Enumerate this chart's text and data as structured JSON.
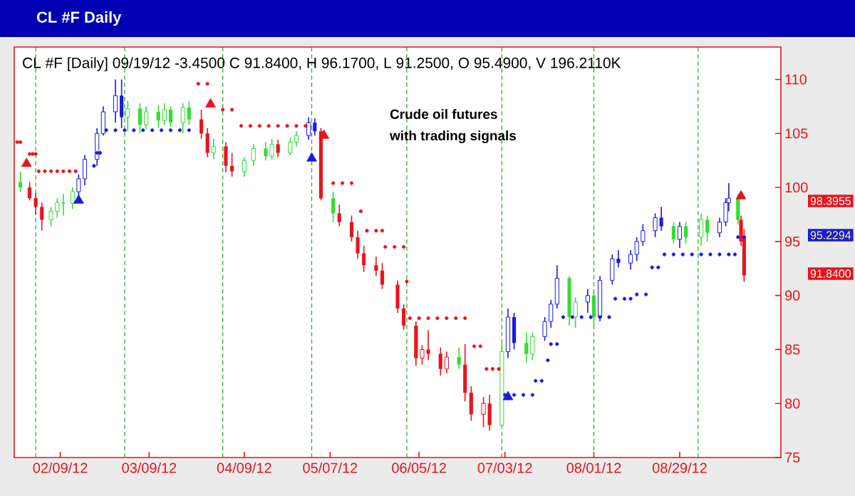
{
  "chart_data": {
    "type": "candlestick",
    "title": "CL #F Daily",
    "subtitle": "CL #F [Daily] 09/19/12 -3.4500 C 91.8400, H 96.1700, L 91.2500, O 95.4900, V 196.2110K",
    "annotations": [
      "Crude oil futures",
      "with trading signals",
      "98.3955",
      "95.2294",
      "91.8400"
    ],
    "xlim": [
      "2012-01-25",
      "2012-10-01"
    ],
    "xticks": [
      {
        "value": "2012-02-09",
        "label": "02/09/12"
      },
      {
        "value": "2012-03-09",
        "label": "03/09/12"
      },
      {
        "value": "2012-04-09",
        "label": "04/09/12"
      },
      {
        "value": "2012-05-07",
        "label": "05/07/12"
      },
      {
        "value": "2012-06-05",
        "label": "06/05/12"
      },
      {
        "value": "2012-07-03",
        "label": "07/03/12"
      },
      {
        "value": "2012-08-01",
        "label": "08/01/12"
      },
      {
        "value": "2012-08-29",
        "label": "08/29/12"
      }
    ],
    "ylim": [
      75,
      113
    ],
    "yticks": [
      75,
      80,
      85,
      90,
      95,
      100,
      105,
      110
    ],
    "ref_lines": [
      {
        "axis": "x",
        "value": "2012-02-01",
        "color": "#22aa22",
        "line_style": "dashed"
      },
      {
        "axis": "x",
        "value": "2012-03-01",
        "color": "#22aa22",
        "line_style": "dashed"
      },
      {
        "axis": "x",
        "value": "2012-04-02",
        "color": "#22aa22",
        "line_style": "dashed"
      },
      {
        "axis": "x",
        "value": "2012-05-01",
        "color": "#22aa22",
        "line_style": "dashed"
      },
      {
        "axis": "x",
        "value": "2012-06-01",
        "color": "#22aa22",
        "line_style": "dashed"
      },
      {
        "axis": "x",
        "value": "2012-07-02",
        "color": "#22aa22",
        "line_style": "dashed"
      },
      {
        "axis": "x",
        "value": "2012-08-01",
        "color": "#22aa22",
        "line_style": "dashed"
      },
      {
        "axis": "x",
        "value": "2012-09-04",
        "color": "#22aa22",
        "line_style": "dashed"
      }
    ],
    "series": [
      {
        "x": [
          "2012-01-27",
          "2012-01-30",
          "2012-02-01",
          "2012-02-03",
          "2012-02-06",
          "2012-02-08",
          "2012-02-10",
          "2012-02-13",
          "2012-02-15",
          "2012-02-17",
          "2012-02-21",
          "2012-02-23",
          "2012-02-27",
          "2012-02-29",
          "2012-03-02",
          "2012-03-06",
          "2012-03-08",
          "2012-03-12",
          "2012-03-14",
          "2012-03-16",
          "2012-03-20",
          "2012-03-22",
          "2012-03-26",
          "2012-03-28",
          "2012-03-30",
          "2012-04-03",
          "2012-04-05",
          "2012-04-09",
          "2012-04-12",
          "2012-04-16",
          "2012-04-18",
          "2012-04-20",
          "2012-04-24",
          "2012-04-26",
          "2012-04-30",
          "2012-05-02",
          "2012-05-04",
          "2012-05-08",
          "2012-05-10",
          "2012-05-14",
          "2012-05-16",
          "2012-05-18",
          "2012-05-22",
          "2012-05-24",
          "2012-05-29",
          "2012-05-31",
          "2012-06-04",
          "2012-06-06",
          "2012-06-08",
          "2012-06-12",
          "2012-06-14",
          "2012-06-18",
          "2012-06-20",
          "2012-06-22",
          "2012-06-26",
          "2012-06-28",
          "2012-07-02",
          "2012-07-04",
          "2012-07-06",
          "2012-07-10",
          "2012-07-12",
          "2012-07-16",
          "2012-07-18",
          "2012-07-20",
          "2012-07-24",
          "2012-07-26",
          "2012-07-30",
          "2012-08-01",
          "2012-08-03",
          "2012-08-07",
          "2012-08-09",
          "2012-08-13",
          "2012-08-15",
          "2012-08-17",
          "2012-08-21",
          "2012-08-23",
          "2012-08-27",
          "2012-08-29",
          "2012-08-31",
          "2012-09-05",
          "2012-09-07",
          "2012-09-11",
          "2012-09-13",
          "2012-09-14",
          "2012-09-17",
          "2012-09-18",
          "2012-09-19"
        ],
        "ohlc": [
          [
            100.5,
            101.5,
            99.6,
            100.0
          ],
          [
            100.0,
            100.5,
            98.8,
            99.0
          ],
          [
            99.0,
            99.5,
            97.5,
            98.2
          ],
          [
            98.2,
            98.6,
            96.0,
            97.0
          ],
          [
            97.0,
            98.2,
            96.4,
            97.8
          ],
          [
            97.8,
            99.0,
            97.2,
            98.6
          ],
          [
            98.6,
            99.4,
            97.4,
            98.5
          ],
          [
            98.5,
            100.0,
            98.0,
            99.6
          ],
          [
            99.6,
            101.2,
            99.0,
            100.8
          ],
          [
            100.8,
            103.0,
            100.2,
            102.6
          ],
          [
            102.6,
            105.5,
            102.0,
            105.0
          ],
          [
            105.0,
            107.5,
            104.8,
            107.0
          ],
          [
            107.0,
            110.0,
            106.0,
            108.5
          ],
          [
            108.5,
            110.0,
            105.5,
            106.5
          ],
          [
            106.5,
            108.0,
            105.2,
            107.3
          ],
          [
            107.3,
            107.8,
            105.0,
            105.8
          ],
          [
            105.8,
            107.5,
            105.4,
            107.0
          ],
          [
            107.0,
            107.6,
            105.5,
            106.2
          ],
          [
            106.2,
            107.8,
            105.8,
            107.2
          ],
          [
            107.2,
            107.5,
            105.6,
            106.0
          ],
          [
            106.0,
            107.8,
            105.0,
            107.4
          ],
          [
            107.4,
            108.0,
            105.8,
            106.3
          ],
          [
            106.3,
            107.2,
            104.5,
            105.0
          ],
          [
            105.0,
            105.5,
            102.8,
            103.2
          ],
          [
            103.2,
            104.5,
            102.6,
            103.8
          ],
          [
            103.8,
            104.2,
            101.4,
            102.0
          ],
          [
            102.0,
            103.2,
            101.0,
            101.5
          ],
          [
            101.5,
            102.8,
            101.0,
            102.5
          ],
          [
            102.5,
            104.0,
            102.0,
            103.6
          ],
          [
            103.6,
            104.2,
            102.5,
            102.9
          ],
          [
            102.9,
            104.5,
            102.6,
            104.0
          ],
          [
            104.0,
            104.4,
            102.8,
            103.2
          ],
          [
            103.2,
            104.6,
            103.0,
            104.2
          ],
          [
            104.2,
            105.2,
            103.8,
            104.8
          ],
          [
            104.8,
            106.5,
            104.4,
            106.0
          ],
          [
            106.0,
            106.4,
            104.8,
            105.2
          ],
          [
            105.2,
            105.5,
            98.8,
            99.0
          ],
          [
            99.0,
            99.6,
            96.8,
            97.6
          ],
          [
            97.6,
            98.4,
            96.4,
            96.8
          ],
          [
            96.8,
            97.4,
            95.0,
            95.4
          ],
          [
            95.4,
            96.0,
            93.4,
            93.9
          ],
          [
            93.9,
            94.6,
            92.2,
            92.8
          ],
          [
            92.8,
            93.6,
            91.8,
            92.3
          ],
          [
            92.3,
            93.0,
            90.6,
            91.0
          ],
          [
            91.0,
            91.4,
            88.4,
            88.8
          ],
          [
            88.8,
            89.2,
            86.8,
            87.2
          ],
          [
            87.2,
            87.6,
            83.5,
            84.2
          ],
          [
            84.2,
            85.4,
            83.6,
            85.0
          ],
          [
            85.0,
            86.8,
            84.0,
            84.6
          ],
          [
            84.6,
            85.2,
            82.6,
            83.2
          ],
          [
            83.2,
            84.8,
            82.8,
            84.3
          ],
          [
            84.3,
            85.2,
            83.2,
            83.6
          ],
          [
            83.6,
            85.5,
            80.2,
            81.0
          ],
          [
            81.0,
            81.6,
            78.4,
            79.0
          ],
          [
            79.0,
            80.6,
            77.8,
            80.0
          ],
          [
            80.0,
            80.8,
            77.5,
            78.0
          ],
          [
            78.0,
            85.6,
            77.9,
            84.8
          ],
          [
            84.8,
            88.8,
            84.2,
            88.0
          ],
          [
            88.0,
            88.4,
            85.0,
            85.6
          ],
          [
            85.6,
            86.6,
            83.8,
            84.6
          ],
          [
            84.6,
            86.6,
            84.0,
            86.2
          ],
          [
            86.2,
            88.0,
            85.8,
            87.6
          ],
          [
            87.6,
            89.6,
            87.0,
            89.2
          ],
          [
            89.2,
            92.8,
            88.8,
            91.6
          ],
          [
            91.6,
            91.8,
            87.2,
            88.0
          ],
          [
            88.0,
            89.8,
            87.0,
            89.4
          ],
          [
            89.4,
            90.6,
            88.4,
            90.0
          ],
          [
            90.0,
            90.4,
            87.2,
            88.0
          ],
          [
            88.0,
            91.8,
            87.6,
            91.4
          ],
          [
            91.4,
            93.8,
            91.0,
            93.4
          ],
          [
            93.4,
            94.2,
            92.6,
            93.0
          ],
          [
            93.0,
            94.2,
            92.4,
            93.8
          ],
          [
            93.8,
            95.4,
            93.2,
            95.0
          ],
          [
            95.0,
            96.6,
            94.6,
            96.0
          ],
          [
            96.0,
            97.6,
            95.4,
            97.2
          ],
          [
            97.2,
            98.2,
            96.0,
            96.4
          ],
          [
            96.4,
            96.8,
            94.8,
            95.2
          ],
          [
            95.2,
            96.8,
            94.4,
            96.4
          ],
          [
            96.4,
            96.8,
            94.8,
            95.4
          ],
          [
            95.4,
            97.6,
            94.6,
            97.0
          ],
          [
            97.0,
            97.4,
            95.0,
            95.8
          ],
          [
            95.8,
            97.2,
            95.4,
            96.8
          ],
          [
            96.8,
            99.0,
            96.4,
            98.6
          ],
          [
            98.6,
            100.4,
            97.8,
            99.0
          ],
          [
            99.0,
            99.4,
            96.6,
            97.0
          ],
          [
            97.0,
            97.4,
            94.6,
            95.0
          ],
          [
            95.49,
            96.17,
            91.25,
            91.84
          ]
        ],
        "colors": [
          "#33dd33",
          "#e8141c",
          "#e8141c",
          "#e8141c",
          "#33dd33",
          "#33dd33",
          "#33dd33",
          "#33dd33",
          "#1a1adf",
          "#1a1adf",
          "#1a1adf",
          "#1a1adf",
          "#1a1adf",
          "#1a1adf",
          "#33dd33",
          "#33dd33",
          "#33dd33",
          "#33dd33",
          "#33dd33",
          "#33dd33",
          "#33dd33",
          "#33dd33",
          "#e8141c",
          "#e8141c",
          "#33dd33",
          "#e8141c",
          "#e8141c",
          "#33dd33",
          "#33dd33",
          "#33dd33",
          "#33dd33",
          "#e8141c",
          "#33dd33",
          "#33dd33",
          "#1a1adf",
          "#1a1adf",
          "#e8141c",
          "#33dd33",
          "#e8141c",
          "#e8141c",
          "#e8141c",
          "#e8141c",
          "#e8141c",
          "#e8141c",
          "#e8141c",
          "#e8141c",
          "#e8141c",
          "#e8141c",
          "#e8141c",
          "#e8141c",
          "#e8141c",
          "#33dd33",
          "#e8141c",
          "#e8141c",
          "#e8141c",
          "#e8141c",
          "#33dd33",
          "#1a1adf",
          "#1a1adf",
          "#33dd33",
          "#33dd33",
          "#1a1adf",
          "#1a1adf",
          "#1a1adf",
          "#33dd33",
          "#33dd33",
          "#1a1adf",
          "#33dd33",
          "#1a1adf",
          "#1a1adf",
          "#1a1adf",
          "#1a1adf",
          "#1a1adf",
          "#1a1adf",
          "#1a1adf",
          "#1a1adf",
          "#33dd33",
          "#1a1adf",
          "#33dd33",
          "#33dd33",
          "#33dd33",
          "#1a1adf",
          "#1a1adf",
          "#1a1adf",
          "#33dd33",
          "#e8141c",
          "#e8141c"
        ]
      },
      {
        "type": "scatter",
        "marker": "circle",
        "color": "#e8141c",
        "x": [
          "2012-01-26",
          "2012-01-27",
          "2012-01-30",
          "2012-01-31",
          "2012-02-01",
          "2012-02-02",
          "2012-02-04",
          "2012-02-06",
          "2012-02-08",
          "2012-02-10",
          "2012-02-12",
          "2012-02-14",
          "2012-03-25",
          "2012-03-28",
          "2012-04-02",
          "2012-04-05",
          "2012-04-08",
          "2012-04-11",
          "2012-04-14",
          "2012-04-17",
          "2012-04-20",
          "2012-04-23",
          "2012-04-26",
          "2012-04-29",
          "2012-05-08",
          "2012-05-11",
          "2012-05-14",
          "2012-05-17",
          "2012-05-19",
          "2012-05-22",
          "2012-05-24",
          "2012-05-25",
          "2012-05-28",
          "2012-05-31",
          "2012-06-01",
          "2012-06-02",
          "2012-06-05",
          "2012-06-08",
          "2012-06-11",
          "2012-06-14",
          "2012-06-17",
          "2012-06-20",
          "2012-06-23",
          "2012-06-25",
          "2012-06-27",
          "2012-06-29",
          "2012-07-01"
        ],
        "values": [
          104.2,
          104.2,
          103.1,
          103.1,
          103.1,
          101.5,
          101.5,
          101.5,
          101.5,
          101.5,
          101.5,
          101.5,
          109.6,
          109.6,
          107.2,
          107.2,
          105.7,
          105.7,
          105.7,
          105.7,
          105.7,
          105.7,
          105.7,
          105.7,
          100.4,
          100.4,
          100.4,
          97.8,
          96.0,
          96.0,
          96.0,
          94.5,
          94.5,
          94.5,
          91.3,
          87.9,
          87.9,
          87.9,
          87.9,
          87.9,
          87.9,
          87.9,
          85.3,
          85.3,
          83.2,
          83.2,
          83.2
        ]
      },
      {
        "type": "scatter",
        "marker": "circle",
        "color": "#1a1adf",
        "x": [
          "2012-02-20",
          "2012-02-21",
          "2012-02-22",
          "2012-02-24",
          "2012-02-27",
          "2012-03-01",
          "2012-03-04",
          "2012-03-07",
          "2012-03-10",
          "2012-03-13",
          "2012-03-16",
          "2012-03-19",
          "2012-03-22",
          "2012-07-03",
          "2012-07-06",
          "2012-07-09",
          "2012-07-12",
          "2012-07-13",
          "2012-07-15",
          "2012-07-17",
          "2012-07-18",
          "2012-07-20",
          "2012-07-22",
          "2012-07-25",
          "2012-07-28",
          "2012-07-31",
          "2012-08-03",
          "2012-08-06",
          "2012-08-08",
          "2012-08-11",
          "2012-08-13",
          "2012-08-15",
          "2012-08-18",
          "2012-08-20",
          "2012-08-22",
          "2012-08-24",
          "2012-08-27",
          "2012-08-30",
          "2012-09-02",
          "2012-09-05",
          "2012-09-08",
          "2012-09-11",
          "2012-09-14",
          "2012-09-16",
          "2012-09-17",
          "2012-09-19"
        ],
        "values": [
          102.0,
          103.2,
          103.2,
          105.3,
          105.3,
          105.3,
          105.3,
          105.3,
          105.3,
          105.3,
          105.3,
          105.3,
          105.3,
          80.8,
          80.8,
          80.8,
          80.8,
          82.1,
          82.1,
          84.0,
          85.5,
          85.5,
          88.0,
          88.0,
          88.0,
          88.0,
          88.0,
          88.0,
          89.7,
          89.7,
          89.7,
          90.1,
          90.1,
          92.6,
          92.6,
          93.8,
          93.8,
          93.8,
          93.8,
          93.8,
          93.8,
          93.8,
          93.8,
          93.8,
          95.4,
          95.4
        ]
      },
      {
        "type": "scatter",
        "marker": "triangle",
        "color": "#1a1adf",
        "x": [
          "2012-02-15",
          "2012-05-01",
          "2012-07-04"
        ],
        "values": [
          98.8,
          102.7,
          80.6
        ]
      },
      {
        "type": "scatter",
        "marker": "triangle",
        "color": "#e8141c",
        "x": [
          "2012-01-29",
          "2012-03-29",
          "2012-05-05",
          "2012-09-18"
        ],
        "values": [
          102.2,
          107.7,
          104.8,
          99.2
        ]
      }
    ]
  }
}
